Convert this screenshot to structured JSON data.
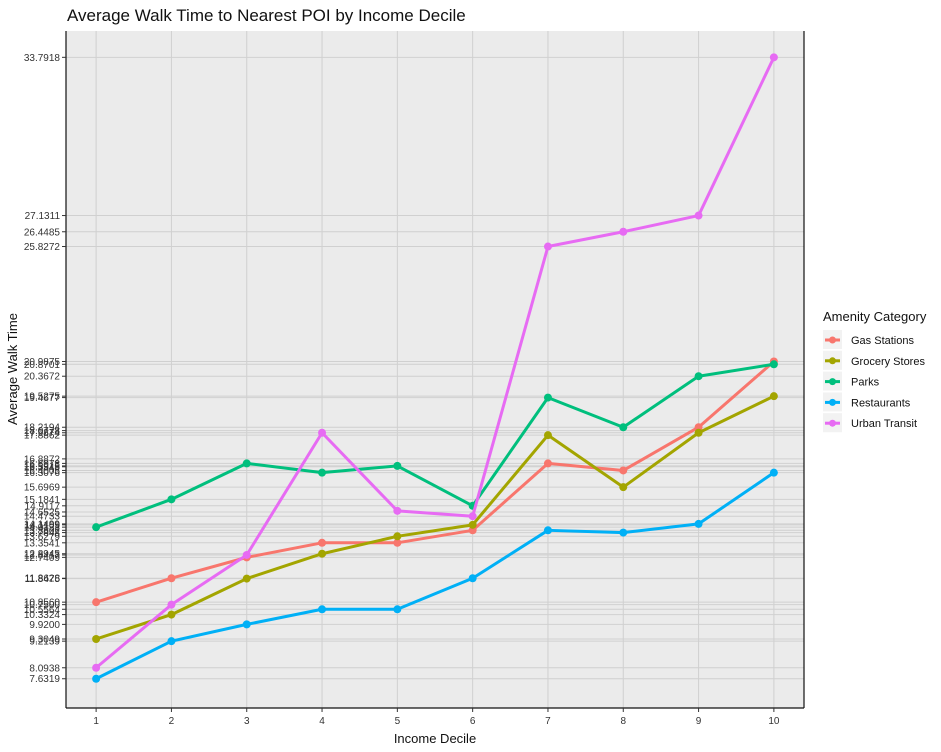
{
  "chart_data": {
    "type": "line",
    "title": "Average Walk Time to Nearest POI by Income Decile",
    "xlabel": "Income Decile",
    "ylabel": "Average Walk Time",
    "x": [
      1,
      2,
      3,
      4,
      5,
      6,
      7,
      8,
      9,
      10
    ],
    "xlim": [
      0.6,
      10.4
    ],
    "ylim": [
      6.4,
      34.9
    ],
    "y_ticks": [
      7.6319,
      8.0938,
      9.2139,
      9.3049,
      9.92,
      10.3324,
      10.5564,
      10.75,
      10.856,
      11.8475,
      11.8628,
      12.7409,
      12.8417,
      12.8945,
      13.3541,
      13.6279,
      13.7848,
      13.8802,
      14.0133,
      14.1109,
      14.1499,
      14.4733,
      14.6525,
      14.9117,
      15.1841,
      15.6969,
      16.3076,
      16.4005,
      16.5545,
      16.5915,
      16.6973,
      16.8872,
      17.8862,
      17.9874,
      18.0778,
      18.2194,
      19.4677,
      19.5275,
      20.3672,
      20.8701,
      20.9875,
      25.8272,
      26.4485,
      27.1311,
      33.7918
    ],
    "y_tick_labels": [
      "7.6319",
      "8.0938",
      "9.2139",
      "9.3049",
      "9.9200",
      "10.3324",
      "10.5564",
      "10.7500",
      "10.8560",
      "11.8475",
      "11.8628",
      "12.7409",
      "12.8417",
      "12.8945",
      "13.3541",
      "13.6279",
      "13.7848",
      "13.8802",
      "14.0133",
      "14.1109",
      "14.1499",
      "14.4733",
      "14.6525",
      "14.9117",
      "15.1841",
      "15.6969",
      "16.3076",
      "16.4005",
      "16.5545",
      "16.5915",
      "16.6973",
      "16.8872",
      "17.8862",
      "17.9874",
      "18.0778",
      "18.2194",
      "19.4677",
      "19.5275",
      "20.3672",
      "20.8701",
      "20.9875",
      "25.8272",
      "26.4485",
      "27.1311",
      "33.7918"
    ],
    "grid": true,
    "legend": {
      "title": "Amenity Category",
      "position": "right"
    },
    "series": [
      {
        "name": "Gas Stations",
        "color": "#F8766D",
        "values": [
          10.856,
          11.8628,
          12.7409,
          13.3541,
          13.3541,
          13.8802,
          16.6973,
          16.4005,
          18.2194,
          20.9875
        ]
      },
      {
        "name": "Grocery Stores",
        "color": "#A3A500",
        "values": [
          9.3049,
          10.3324,
          11.8475,
          12.8945,
          13.6279,
          14.1109,
          17.8862,
          15.6969,
          17.9874,
          19.5275
        ]
      },
      {
        "name": "Parks",
        "color": "#00BF7D",
        "values": [
          14.0133,
          15.1841,
          16.6973,
          16.3076,
          16.5915,
          14.9117,
          19.4677,
          18.2194,
          20.3672,
          20.8701
        ]
      },
      {
        "name": "Restaurants",
        "color": "#00B0F6",
        "values": [
          7.6319,
          9.2139,
          9.92,
          10.5564,
          10.5564,
          11.8628,
          13.8802,
          13.7848,
          14.1499,
          16.3076
        ]
      },
      {
        "name": "Urban Transit",
        "color": "#E76BF3",
        "values": [
          8.0938,
          10.75,
          12.8417,
          17.9874,
          14.7,
          14.4733,
          25.8272,
          26.4485,
          27.1311,
          33.7918
        ]
      }
    ]
  }
}
